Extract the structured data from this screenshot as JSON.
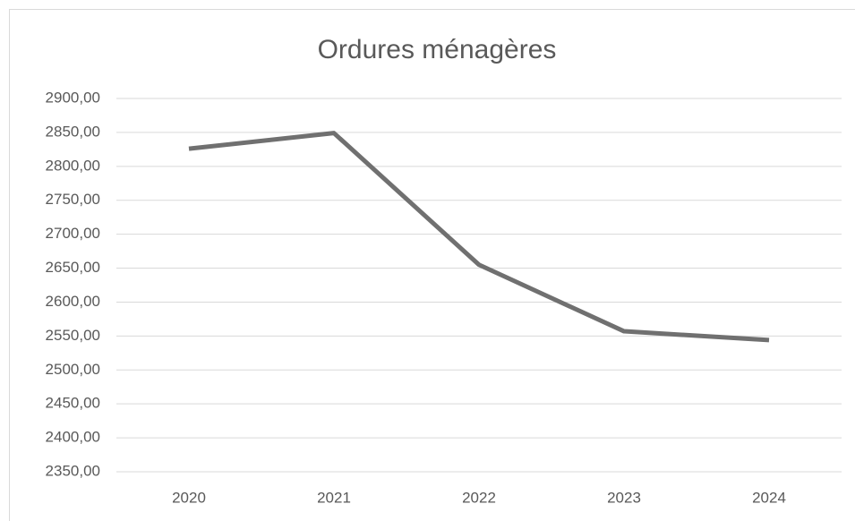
{
  "chart_data": {
    "type": "line",
    "title": "Ordures ménagères",
    "categories": [
      "2020",
      "2021",
      "2022",
      "2023",
      "2024"
    ],
    "values": [
      2826,
      2849,
      2655,
      2557,
      2544
    ],
    "color": "#707070",
    "ylim": [
      2350,
      2900
    ],
    "yticks": [
      {
        "value": 2350,
        "label": "2350,00"
      },
      {
        "value": 2400,
        "label": "2400,00"
      },
      {
        "value": 2450,
        "label": "2450,00"
      },
      {
        "value": 2500,
        "label": "2500,00"
      },
      {
        "value": 2550,
        "label": "2550,00"
      },
      {
        "value": 2600,
        "label": "2600,00"
      },
      {
        "value": 2650,
        "label": "2650,00"
      },
      {
        "value": 2700,
        "label": "2700,00"
      },
      {
        "value": 2750,
        "label": "2750,00"
      },
      {
        "value": 2800,
        "label": "2800,00"
      },
      {
        "value": 2850,
        "label": "2850,00"
      },
      {
        "value": 2900,
        "label": "2900,00"
      }
    ],
    "grid": true
  }
}
